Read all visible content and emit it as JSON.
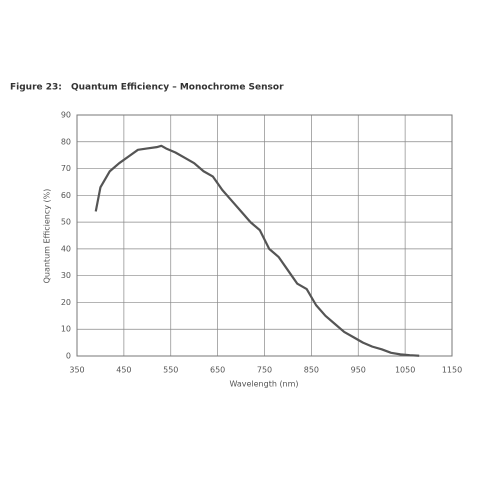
{
  "figure_label": "Figure 23:",
  "chart_data": {
    "type": "line",
    "title": "Quantum Efficiency – Monochrome Sensor",
    "xlabel": "Wavelength (nm)",
    "ylabel": "Quantum Efficiency (%)",
    "xlim": [
      350,
      1150
    ],
    "xticks": [
      350,
      450,
      550,
      650,
      750,
      850,
      950,
      1050,
      1150
    ],
    "ylim": [
      0,
      90
    ],
    "yticks": [
      0,
      10,
      20,
      30,
      40,
      50,
      60,
      70,
      80,
      90
    ],
    "grid": true,
    "series": [
      {
        "name": "Monochrome",
        "color": "#555555",
        "x": [
          390,
          400,
          420,
          440,
          460,
          480,
          500,
          520,
          530,
          540,
          560,
          580,
          600,
          620,
          640,
          660,
          680,
          700,
          720,
          740,
          760,
          780,
          800,
          820,
          840,
          860,
          880,
          900,
          920,
          940,
          960,
          980,
          1000,
          1020,
          1040,
          1060,
          1080
        ],
        "values": [
          54,
          63,
          69,
          72,
          74.5,
          77,
          77.5,
          78,
          78.5,
          77.5,
          76,
          74,
          72,
          69,
          67,
          62,
          58,
          54,
          50,
          47,
          40,
          37,
          32,
          27,
          25,
          19,
          15,
          12,
          9,
          7,
          5,
          3.5,
          2.5,
          1.2,
          0.6,
          0.3,
          0.1
        ]
      }
    ]
  }
}
